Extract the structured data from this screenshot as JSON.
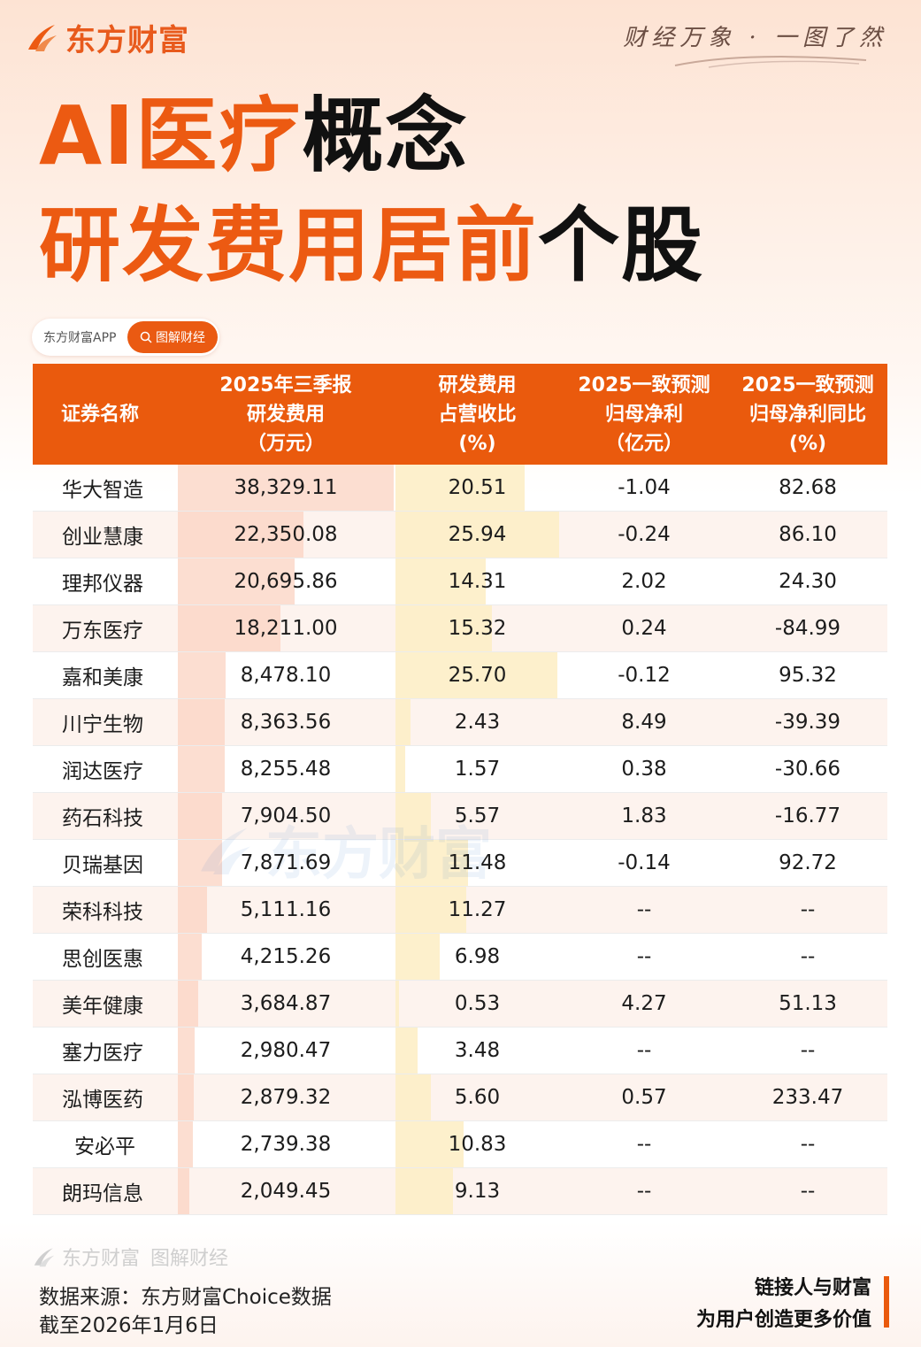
{
  "header": {
    "brand": "东方财富",
    "slogan": "财经万象 · 一图了然",
    "title_line1_orange": "AI医疗",
    "title_line1_black": "概念",
    "title_line2_orange": "研发费用居前",
    "title_line2_black": "个股",
    "app_name": "东方财富APP",
    "app_button": "图解财经"
  },
  "table": {
    "headers": {
      "name": "证券名称",
      "rd_l1": "2025年三季报",
      "rd_l2": "研发费用",
      "rd_l3": "（万元）",
      "ratio_l1": "研发费用",
      "ratio_l2": "占营收比",
      "ratio_l3": "(%)",
      "profit_l1": "2025一致预测",
      "profit_l2": "归母净利",
      "profit_l3": "（亿元）",
      "yoy_l1": "2025一致预测",
      "yoy_l2": "归母净利同比",
      "yoy_l3": "(%)"
    }
  },
  "chart_data": {
    "type": "table",
    "columns": [
      "证券名称",
      "2025年三季报研发费用（万元）",
      "研发费用占营收比(%)",
      "2025一致预测归母净利（亿元）",
      "2025一致预测归母净利同比(%)"
    ],
    "rows": [
      {
        "name": "华大智造",
        "rd": "38,329.11",
        "rd_num": 38329.11,
        "ratio": "20.51",
        "ratio_num": 20.51,
        "profit": "-1.04",
        "yoy": "82.68"
      },
      {
        "name": "创业慧康",
        "rd": "22,350.08",
        "rd_num": 22350.08,
        "ratio": "25.94",
        "ratio_num": 25.94,
        "profit": "-0.24",
        "yoy": "86.10"
      },
      {
        "name": "理邦仪器",
        "rd": "20,695.86",
        "rd_num": 20695.86,
        "ratio": "14.31",
        "ratio_num": 14.31,
        "profit": "2.02",
        "yoy": "24.30"
      },
      {
        "name": "万东医疗",
        "rd": "18,211.00",
        "rd_num": 18211.0,
        "ratio": "15.32",
        "ratio_num": 15.32,
        "profit": "0.24",
        "yoy": "-84.99"
      },
      {
        "name": "嘉和美康",
        "rd": "8,478.10",
        "rd_num": 8478.1,
        "ratio": "25.70",
        "ratio_num": 25.7,
        "profit": "-0.12",
        "yoy": "95.32"
      },
      {
        "name": "川宁生物",
        "rd": "8,363.56",
        "rd_num": 8363.56,
        "ratio": "2.43",
        "ratio_num": 2.43,
        "profit": "8.49",
        "yoy": "-39.39"
      },
      {
        "name": "润达医疗",
        "rd": "8,255.48",
        "rd_num": 8255.48,
        "ratio": "1.57",
        "ratio_num": 1.57,
        "profit": "0.38",
        "yoy": "-30.66"
      },
      {
        "name": "药石科技",
        "rd": "7,904.50",
        "rd_num": 7904.5,
        "ratio": "5.57",
        "ratio_num": 5.57,
        "profit": "1.83",
        "yoy": "-16.77"
      },
      {
        "name": "贝瑞基因",
        "rd": "7,871.69",
        "rd_num": 7871.69,
        "ratio": "11.48",
        "ratio_num": 11.48,
        "profit": "-0.14",
        "yoy": "92.72"
      },
      {
        "name": "荣科科技",
        "rd": "5,111.16",
        "rd_num": 5111.16,
        "ratio": "11.27",
        "ratio_num": 11.27,
        "profit": "--",
        "yoy": "--"
      },
      {
        "name": "思创医惠",
        "rd": "4,215.26",
        "rd_num": 4215.26,
        "ratio": "6.98",
        "ratio_num": 6.98,
        "profit": "--",
        "yoy": "--"
      },
      {
        "name": "美年健康",
        "rd": "3,684.87",
        "rd_num": 3684.87,
        "ratio": "0.53",
        "ratio_num": 0.53,
        "profit": "4.27",
        "yoy": "51.13"
      },
      {
        "name": "塞力医疗",
        "rd": "2,980.47",
        "rd_num": 2980.47,
        "ratio": "3.48",
        "ratio_num": 3.48,
        "profit": "--",
        "yoy": "--"
      },
      {
        "name": "泓博医药",
        "rd": "2,879.32",
        "rd_num": 2879.32,
        "ratio": "5.60",
        "ratio_num": 5.6,
        "profit": "0.57",
        "yoy": "233.47"
      },
      {
        "name": "安必平",
        "rd": "2,739.38",
        "rd_num": 2739.38,
        "ratio": "10.83",
        "ratio_num": 10.83,
        "profit": "--",
        "yoy": "--"
      },
      {
        "name": "朗玛信息",
        "rd": "2,049.45",
        "rd_num": 2049.45,
        "ratio": "9.13",
        "ratio_num": 9.13,
        "profit": "--",
        "yoy": "--"
      }
    ],
    "rd_max": 38329.11,
    "ratio_max": 25.94
  },
  "footer": {
    "brand": "东方财富",
    "brand_sub": "图解财经",
    "source_line1": "数据来源：东方财富Choice数据",
    "source_line2": "截至2026年1月6日",
    "tag_line1": "链接人与财富",
    "tag_line2": "为用户创造更多价值"
  },
  "colors": {
    "accent": "#ea5a0d",
    "rd_bar": "#fbd3c2",
    "ratio_bar": "#fdeec7"
  }
}
